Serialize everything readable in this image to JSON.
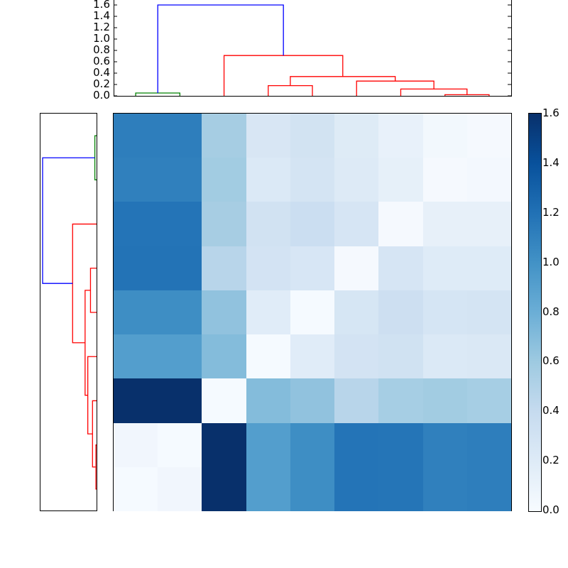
{
  "chart_data": {
    "type": "heatmap",
    "title": "",
    "description": "Clustered heatmap with top and left dendrograms and a colorbar (Blues colormap)",
    "n": 9,
    "colormap": "Blues",
    "colorbar": {
      "min": 0.0,
      "max": 1.6,
      "ticks": [
        "0.0",
        "0.2",
        "0.4",
        "0.6",
        "0.8",
        "1.0",
        "1.2",
        "1.4",
        "1.6"
      ]
    },
    "top_dendrogram": {
      "yticks": [
        "0.0",
        "0.2",
        "0.4",
        "0.6",
        "0.8",
        "1.0",
        "1.2",
        "1.4",
        "1.6"
      ],
      "ylim": [
        0,
        1.68
      ],
      "links": [
        {
          "left": 0,
          "right": 1,
          "height": 0.05,
          "color": "#008000"
        },
        {
          "left": 7,
          "right": 8,
          "height": 0.02,
          "color": "#ff0000"
        },
        {
          "left": 6,
          "right": "7-8",
          "height": 0.12,
          "color": "#ff0000"
        },
        {
          "left": 5,
          "right": "6-8",
          "height": 0.26,
          "color": "#ff0000"
        },
        {
          "left": 3,
          "right": 4,
          "height": 0.18,
          "color": "#ff0000"
        },
        {
          "left": "3-4",
          "right": "5-8",
          "height": 0.34,
          "color": "#ff0000"
        },
        {
          "left": 2,
          "right": "3-8",
          "height": 0.71,
          "color": "#ff0000"
        },
        {
          "left": "0-1",
          "right": "2-8",
          "height": 1.6,
          "color": "#0000ff"
        }
      ]
    },
    "values": [
      [
        1.15,
        1.15,
        0.46,
        0.18,
        0.22,
        0.15,
        0.08,
        0.05,
        0.04
      ],
      [
        1.13,
        1.13,
        0.48,
        0.16,
        0.21,
        0.16,
        0.1,
        0.03,
        0.04
      ],
      [
        1.22,
        1.22,
        0.46,
        0.22,
        0.24,
        0.19,
        0.03,
        0.11,
        0.11
      ],
      [
        1.24,
        1.24,
        0.37,
        0.21,
        0.18,
        0.03,
        0.19,
        0.15,
        0.15
      ],
      [
        1.0,
        1.0,
        0.64,
        0.14,
        0.03,
        0.19,
        0.24,
        0.19,
        0.2
      ],
      [
        0.88,
        0.88,
        0.7,
        0.03,
        0.14,
        0.21,
        0.22,
        0.17,
        0.17
      ],
      [
        1.6,
        1.6,
        0.03,
        0.7,
        0.64,
        0.38,
        0.46,
        0.48,
        0.47
      ],
      [
        0.06,
        0.02,
        1.6,
        0.88,
        1.0,
        1.23,
        1.22,
        1.13,
        1.14
      ],
      [
        0.02,
        0.06,
        1.6,
        0.88,
        1.0,
        1.23,
        1.22,
        1.13,
        1.14
      ]
    ],
    "cell_colors": [
      [
        "#2e7ebc",
        "#2e7ebc",
        "#a6cde3",
        "#d8e6f4",
        "#d2e3f2",
        "#deebf6",
        "#e8f1fa",
        "#f2f8fd",
        "#f5f9fe"
      ],
      [
        "#3080bd",
        "#3080bd",
        "#a2cce2",
        "#dbe9f6",
        "#d4e4f3",
        "#ddeaf6",
        "#e6f0f9",
        "#f5f9fe",
        "#f3f8fe"
      ],
      [
        "#2474b7",
        "#2474b7",
        "#a7cde3",
        "#d1e2f2",
        "#cbdef1",
        "#d6e5f4",
        "#f5f9fe",
        "#e7f0f9",
        "#e7f0f9"
      ],
      [
        "#2373b6",
        "#2373b6",
        "#b8d5ea",
        "#d3e3f3",
        "#d7e6f5",
        "#f5f9fe",
        "#d6e5f4",
        "#deebf7",
        "#deebf7"
      ],
      [
        "#3e8ec4",
        "#3e8ec4",
        "#91c2de",
        "#e0ecf8",
        "#f5faff",
        "#d6e6f4",
        "#cddff1",
        "#d5e5f4",
        "#d4e4f3"
      ],
      [
        "#539ecd",
        "#539ecd",
        "#84bcdb",
        "#f5faff",
        "#e0ecf8",
        "#d3e3f3",
        "#d0e2f2",
        "#dbe9f6",
        "#dae8f5"
      ],
      [
        "#08306b",
        "#08306b",
        "#f5faff",
        "#84bcdb",
        "#91c2de",
        "#b8d5ea",
        "#a6cee4",
        "#a2cce2",
        "#a6cee4"
      ],
      [
        "#f1f6fd",
        "#f5faff",
        "#08306b",
        "#539ecd",
        "#3e8ec4",
        "#2474b7",
        "#2575b7",
        "#3080bd",
        "#2e7ebc"
      ],
      [
        "#f5faff",
        "#f1f6fd",
        "#08306b",
        "#539ecd",
        "#3e8ec4",
        "#2474b7",
        "#2575b7",
        "#3080bd",
        "#2e7ebc"
      ]
    ]
  }
}
